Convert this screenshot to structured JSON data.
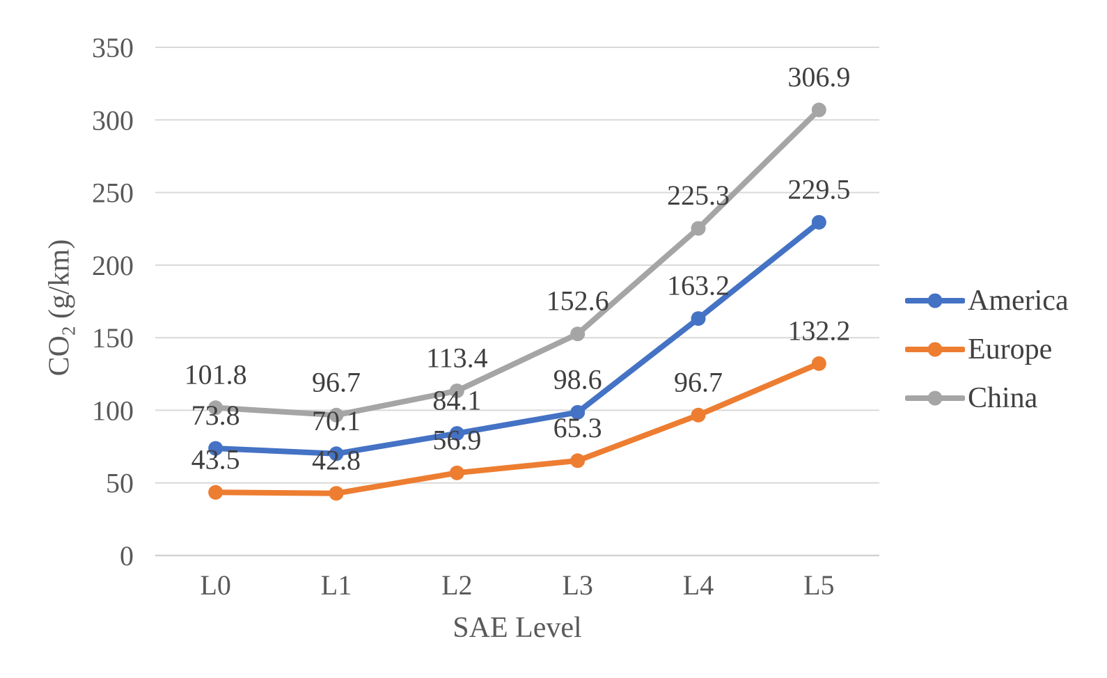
{
  "chart_data": {
    "type": "line",
    "categories": [
      "L0",
      "L1",
      "L2",
      "L3",
      "L4",
      "L5"
    ],
    "series": [
      {
        "name": "America",
        "color": "#4472C4",
        "values": [
          73.8,
          70.1,
          84.1,
          98.6,
          163.2,
          229.5
        ]
      },
      {
        "name": "Europe",
        "color": "#ED7D31",
        "values": [
          43.5,
          42.8,
          56.9,
          65.3,
          96.7,
          132.2
        ]
      },
      {
        "name": "China",
        "color": "#A5A5A5",
        "values": [
          101.8,
          96.7,
          113.4,
          152.6,
          225.3,
          306.9
        ]
      }
    ],
    "xlabel": "SAE Level",
    "ylabel_main": "CO",
    "ylabel_sub": "2",
    "ylabel_unit": "(g/km)",
    "ylim": [
      0,
      350
    ],
    "yticks": [
      0,
      50,
      100,
      150,
      200,
      250,
      300,
      350
    ],
    "grid": true,
    "legend_position": "right",
    "data_labels": true,
    "colors": {
      "gridline": "#D9D9D9",
      "axis_line": "#D2D2D2",
      "tick_text": "#595959",
      "data_label_text": "#3F3F3F",
      "background": "#FFFFFF"
    }
  }
}
